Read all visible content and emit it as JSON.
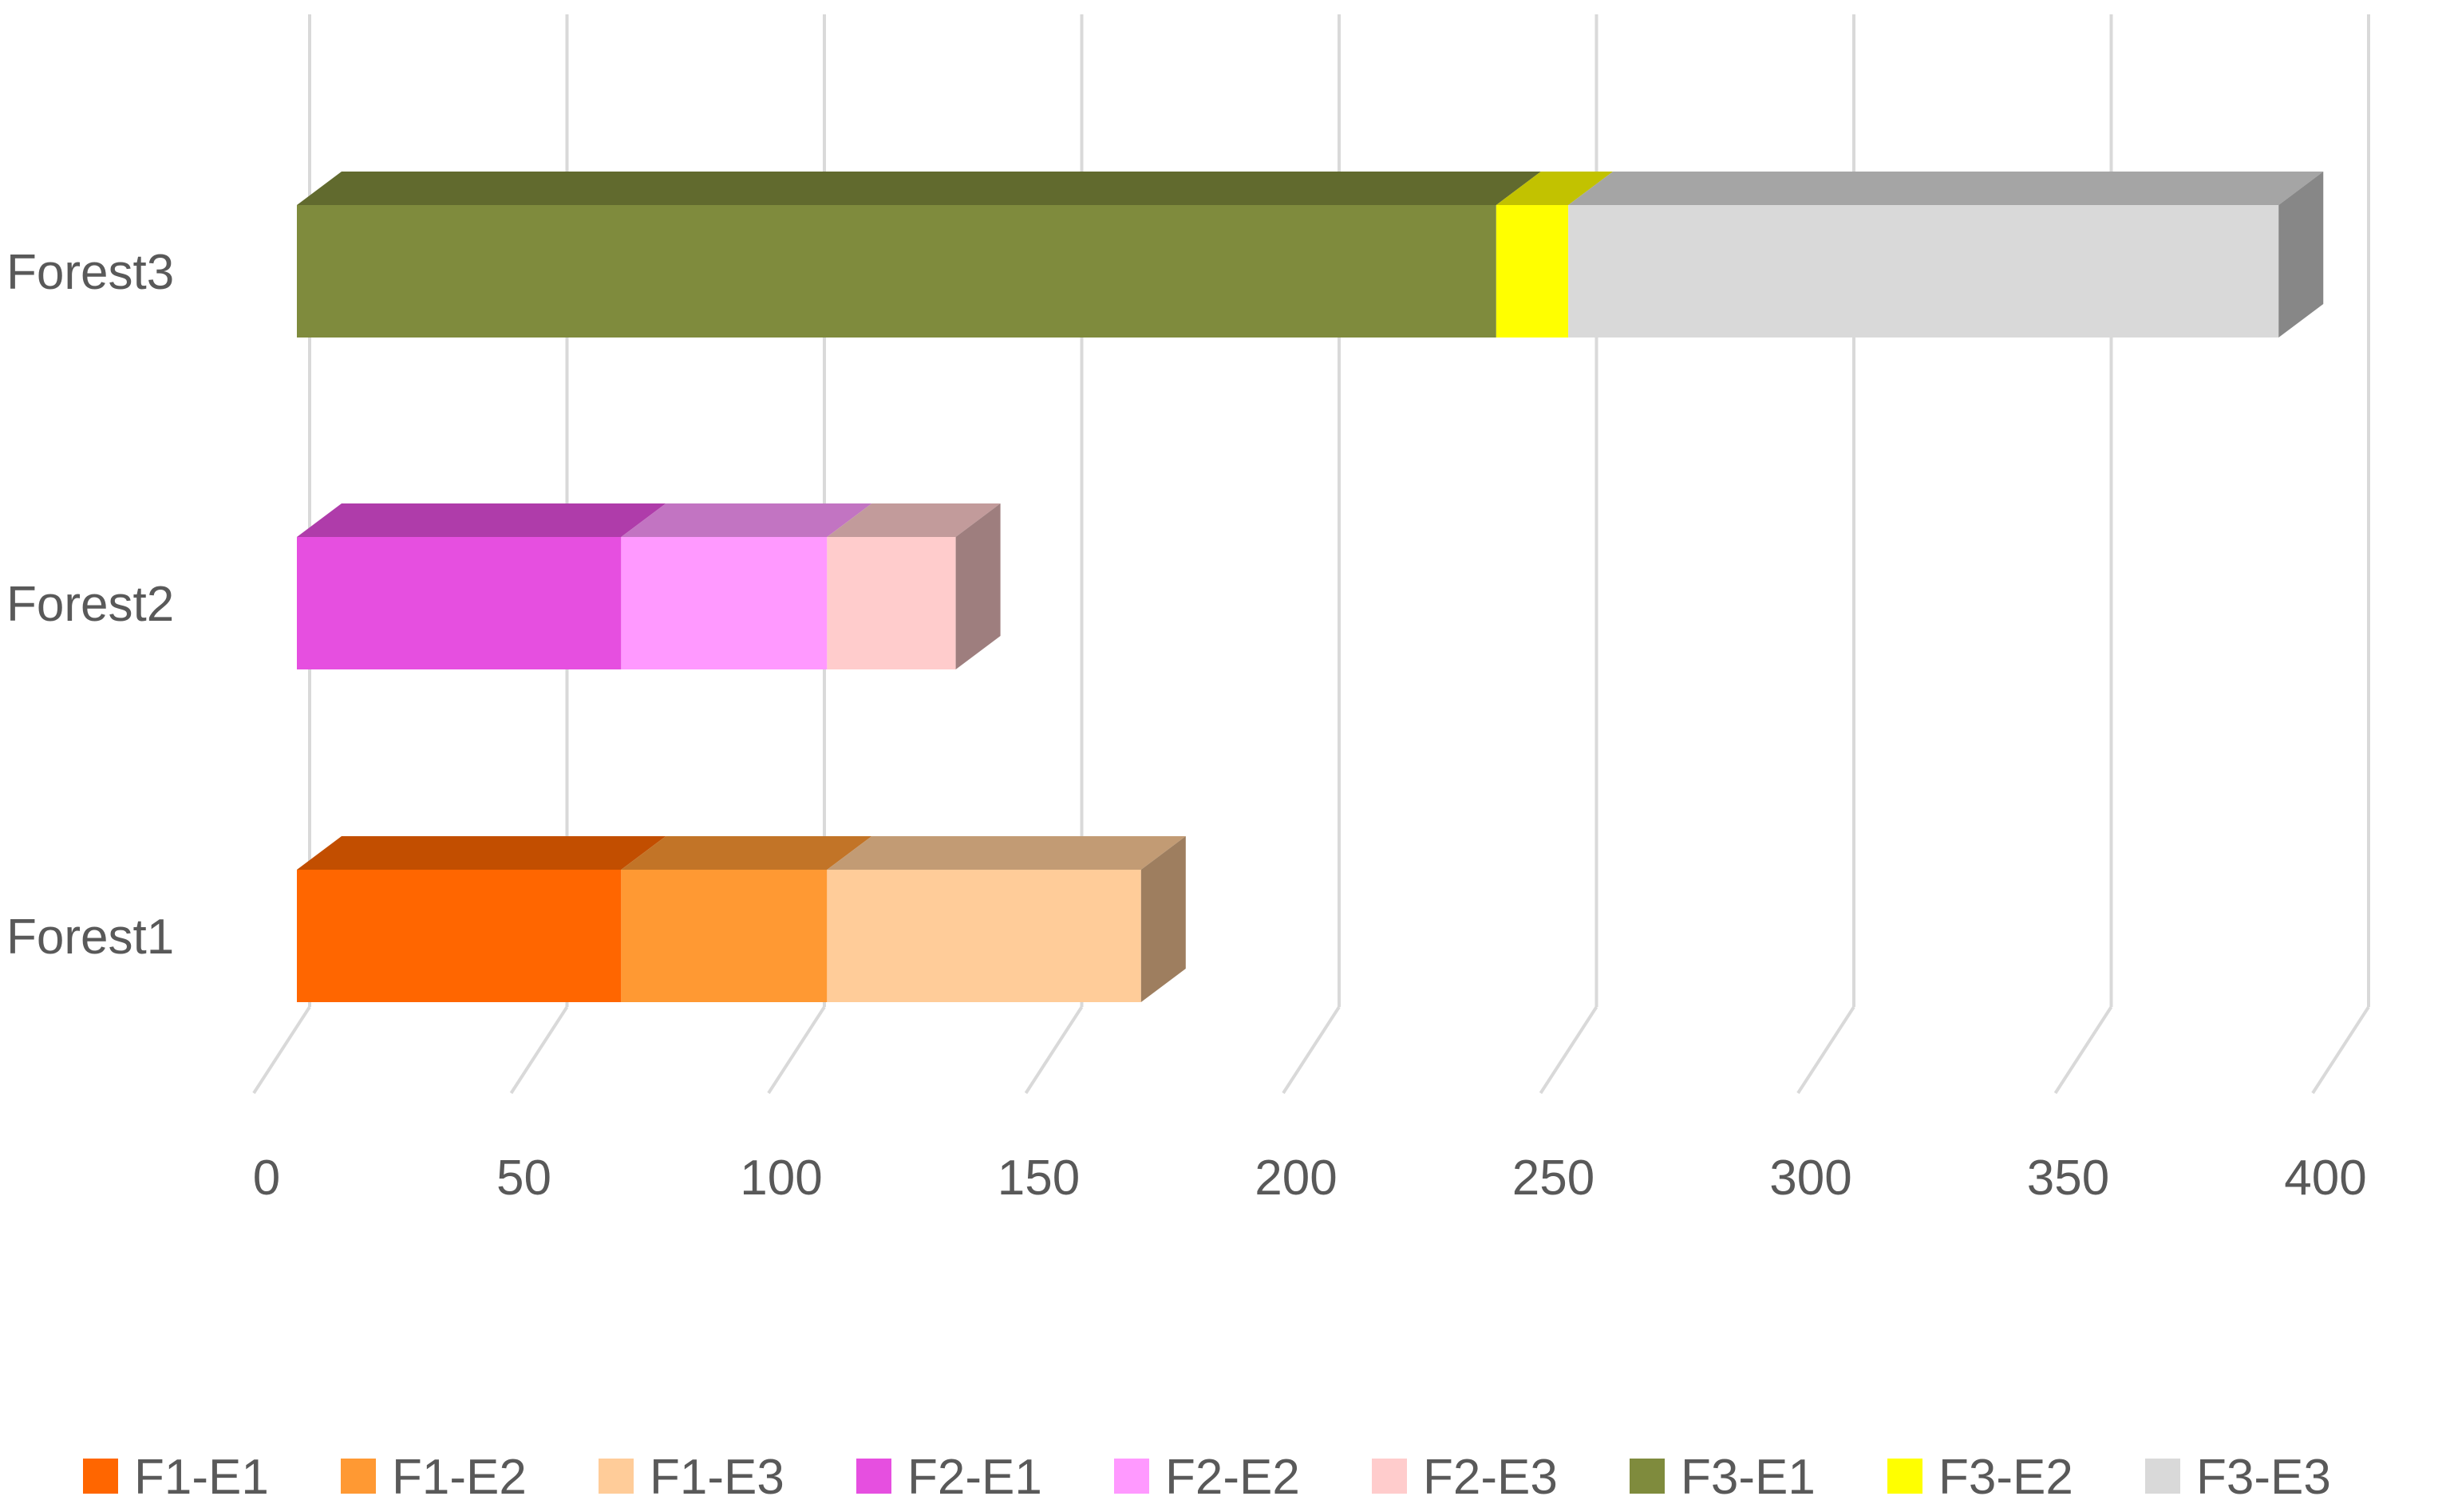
{
  "chart_data": {
    "type": "bar",
    "orientation": "horizontal",
    "stacked": true,
    "style": "3d",
    "categories": [
      "Forest1",
      "Forest2",
      "Forest3"
    ],
    "xlim": [
      0,
      400
    ],
    "xticks": [
      "0",
      "50",
      "100",
      "150",
      "200",
      "250",
      "300",
      "350",
      "400"
    ],
    "grid": true,
    "legend_position": "bottom",
    "series": [
      {
        "name": "F1-E1",
        "color": "#FF6600",
        "values": [
          63,
          0,
          0
        ]
      },
      {
        "name": "F1-E2",
        "color": "#FF9933",
        "values": [
          40,
          0,
          0
        ]
      },
      {
        "name": "F1-E3",
        "color": "#FFCC99",
        "values": [
          61,
          0,
          0
        ]
      },
      {
        "name": "F2-E1",
        "color": "#E64FE0",
        "values": [
          0,
          63,
          0
        ]
      },
      {
        "name": "F2-E2",
        "color": "#FF99FF",
        "values": [
          0,
          40,
          0
        ]
      },
      {
        "name": "F2-E3",
        "color": "#FFCCCC",
        "values": [
          0,
          25,
          0
        ]
      },
      {
        "name": "F3-E1",
        "color": "#7F8B3D",
        "values": [
          0,
          0,
          233
        ]
      },
      {
        "name": "F3-E2",
        "color": "#FFFF00",
        "values": [
          0,
          0,
          14
        ]
      },
      {
        "name": "F3-E3",
        "color": "#D9D9D9",
        "values": [
          0,
          0,
          138
        ]
      }
    ]
  }
}
